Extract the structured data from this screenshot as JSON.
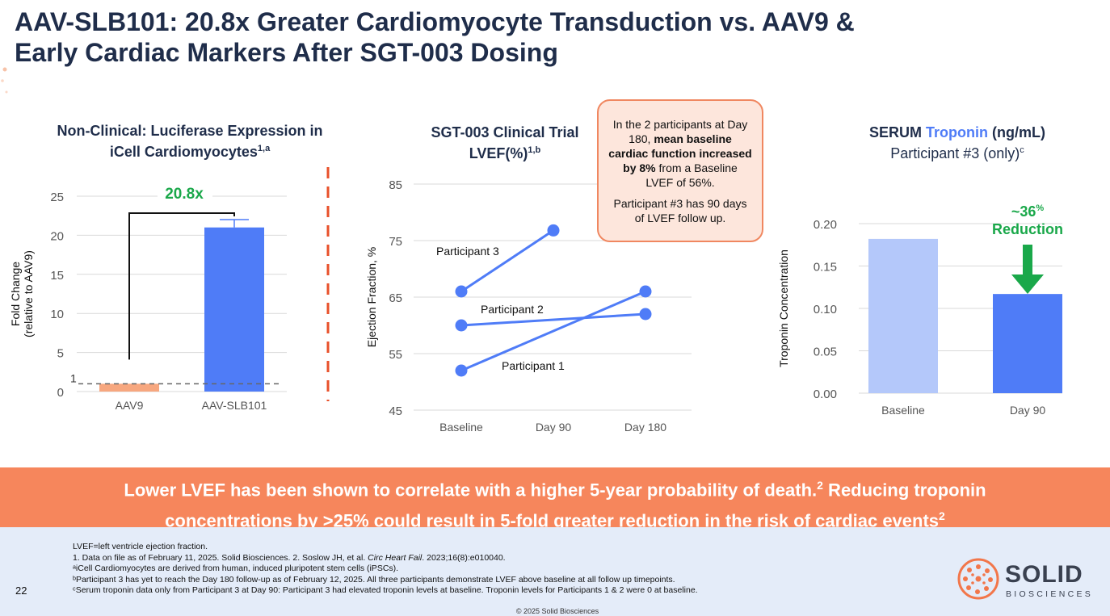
{
  "title": {
    "line1": "AAV-SLB101: 20.8x Greater Cardiomyocyte Transduction vs. AAV9 &",
    "line2": "Early Cardiac Markers After SGT-003 Dosing"
  },
  "panels": {
    "left": {
      "title_line1": "Non-Clinical: Luciferase Expression in",
      "title_line2": "iCell Cardiomyocytes",
      "title_sup": "1,a"
    },
    "middle": {
      "title_line1": "SGT-003 Clinical Trial",
      "title_line2": "LVEF(%)",
      "title_sup": "1,b"
    },
    "right": {
      "title_pre": "SERUM ",
      "title_highlight": "Troponin",
      "title_post": " (ng/mL)",
      "subtitle": "Participant #3 (only)",
      "subtitle_sup": "c"
    }
  },
  "callout": {
    "p1_pre": "In the 2 participants at Day 180, ",
    "p1_bold": "mean baseline cardiac function increased by 8%",
    "p1_post": " from a Baseline LVEF of 56%.",
    "p2": "Participant #3 has 90 days of LVEF follow up."
  },
  "chart_data": [
    {
      "type": "bar",
      "categories": [
        "AAV9",
        "AAV-SLB101"
      ],
      "values": [
        1,
        21
      ],
      "error_upper": [
        null,
        22
      ],
      "ylabel_line1": "Fold Change",
      "ylabel_line2": "(relative to AAV9)",
      "ylim": [
        0,
        25
      ],
      "yticks": [
        "0",
        "5",
        "10",
        "15",
        "20",
        "25"
      ],
      "ref_line": 1,
      "ref_label": "1",
      "annotation": "20.8x",
      "colors": [
        "#f7a77f",
        "#4f7cf7"
      ]
    },
    {
      "type": "line",
      "categories": [
        "Baseline",
        "Day 90",
        "Day 180"
      ],
      "ylabel": "Ejection Fraction, %",
      "ylim": [
        45,
        85
      ],
      "yticks": [
        "45",
        "55",
        "65",
        "75",
        "85"
      ],
      "series": [
        {
          "name": "Participant 3",
          "values": [
            66,
            76.8,
            null
          ]
        },
        {
          "name": "Participant 2",
          "values": [
            60,
            null,
            62
          ]
        },
        {
          "name": "Participant 1",
          "values": [
            52,
            null,
            66
          ]
        }
      ],
      "color": "#4f7cf7"
    },
    {
      "type": "bar",
      "categories": [
        "Baseline",
        "Day 90"
      ],
      "values": [
        0.182,
        0.117
      ],
      "ylabel": "Troponin Concentration",
      "ylim": [
        0,
        0.2
      ],
      "yticks": [
        "0.00",
        "0.05",
        "0.10",
        "0.15",
        "0.20"
      ],
      "annotation_value": "~36",
      "annotation_sup": "%",
      "annotation_label": "Reduction",
      "colors": [
        "#b4c8fa",
        "#4f7cf7"
      ],
      "annotation_color": "#1aa84a"
    }
  ],
  "banner": {
    "line1": "Lower LVEF has been shown to correlate with a higher 5-year probability of death.",
    "line1_sup": "2",
    "line1_post": " Reducing troponin",
    "line2": "concentrations by >25% could result in 5-fold greater reduction in the risk of cardiac events",
    "line2_sup": "2"
  },
  "footnotes": {
    "l1": "LVEF=left ventricle ejection fraction.",
    "l2_pre": "1. Data on file as of February 11, 2025. Solid Biosciences. 2. Soslow JH, et al. ",
    "l2_italic": "Circ Heart Fail",
    "l2_post": ". 2023;16(8):e010040.",
    "l3": "ᵃiCell Cardiomyocytes are derived from human, induced pluripotent stem cells (iPSCs).",
    "l4": "ᵇParticipant 3 has yet to reach the Day 180 follow-up as of February 12, 2025. All three participants demonstrate LVEF above baseline at all follow up timepoints.",
    "l5": "ᶜSerum troponin data only from Participant 3 at Day 90: Participant 3 had elevated troponin levels at baseline. Troponin levels for Participants 1 & 2 were 0 at baseline."
  },
  "page_number": "22",
  "copyright": "© 2025 Solid Biosciences",
  "logo": {
    "word": "SOLID",
    "sub": "BIOSCIENCES"
  }
}
